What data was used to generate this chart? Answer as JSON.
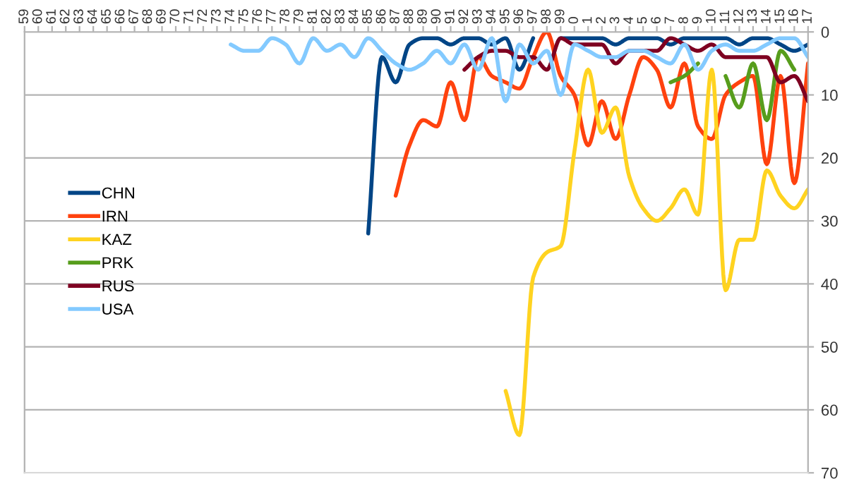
{
  "chart_data": {
    "type": "line",
    "categories": [
      "59",
      "60",
      "61",
      "62",
      "63",
      "64",
      "65",
      "66",
      "67",
      "68",
      "69",
      "70",
      "71",
      "72",
      "73",
      "74",
      "75",
      "76",
      "77",
      "78",
      "79",
      "81",
      "82",
      "83",
      "84",
      "85",
      "86",
      "87",
      "88",
      "89",
      "90",
      "91",
      "92",
      "93",
      "94",
      "95",
      "96",
      "97",
      "98",
      "99",
      "0",
      "1",
      "2",
      "3",
      "4",
      "5",
      "6",
      "7",
      "8",
      "9",
      "10",
      "11",
      "12",
      "13",
      "14",
      "15",
      "16",
      "17"
    ],
    "series": [
      {
        "name": "CHN",
        "color": "#004586",
        "values": [
          null,
          null,
          null,
          null,
          null,
          null,
          null,
          null,
          null,
          null,
          null,
          null,
          null,
          null,
          null,
          null,
          null,
          null,
          null,
          null,
          null,
          null,
          null,
          null,
          null,
          32,
          4,
          8,
          2,
          1,
          1,
          2,
          1,
          1,
          2,
          1,
          6,
          1,
          null,
          1,
          1,
          1,
          1,
          2,
          1,
          1,
          1,
          2,
          1,
          1,
          1,
          1,
          2,
          1,
          1,
          2,
          3,
          2
        ]
      },
      {
        "name": "IRN",
        "color": "#ff420e",
        "values": [
          null,
          null,
          null,
          null,
          null,
          null,
          null,
          null,
          null,
          null,
          null,
          null,
          null,
          null,
          null,
          null,
          null,
          null,
          null,
          null,
          null,
          null,
          null,
          null,
          null,
          null,
          null,
          26,
          18,
          14,
          15,
          8,
          14,
          4,
          7,
          8,
          9,
          4,
          0,
          7,
          10,
          18,
          11,
          17,
          10,
          4,
          6,
          12,
          5,
          15,
          17,
          10,
          8,
          7,
          21,
          7,
          24,
          5
        ]
      },
      {
        "name": "KAZ",
        "color": "#ffd320",
        "values": [
          null,
          null,
          null,
          null,
          null,
          null,
          null,
          null,
          null,
          null,
          null,
          null,
          null,
          null,
          null,
          null,
          null,
          null,
          null,
          null,
          null,
          null,
          null,
          null,
          null,
          null,
          null,
          null,
          null,
          null,
          null,
          null,
          null,
          null,
          null,
          57,
          64,
          39,
          35,
          34,
          19,
          6,
          16,
          12,
          23,
          28,
          30,
          28,
          25,
          29,
          6,
          41,
          33,
          33,
          22,
          26,
          28,
          25
        ]
      },
      {
        "name": "PRK",
        "color": "#579d1c",
        "values": [
          null,
          null,
          null,
          null,
          null,
          null,
          null,
          null,
          null,
          null,
          null,
          null,
          null,
          null,
          null,
          null,
          null,
          null,
          null,
          null,
          null,
          null,
          null,
          null,
          null,
          null,
          null,
          null,
          null,
          null,
          null,
          null,
          null,
          null,
          null,
          null,
          null,
          null,
          null,
          null,
          null,
          null,
          null,
          null,
          null,
          null,
          null,
          8,
          7,
          5,
          null,
          7,
          12,
          5,
          14,
          3,
          6,
          null
        ]
      },
      {
        "name": "RUS",
        "color": "#7e0021",
        "values": [
          null,
          null,
          null,
          null,
          null,
          null,
          null,
          null,
          null,
          null,
          null,
          null,
          null,
          null,
          null,
          null,
          null,
          null,
          null,
          null,
          null,
          null,
          null,
          null,
          null,
          null,
          null,
          null,
          null,
          null,
          null,
          null,
          6,
          4,
          3,
          3,
          4,
          4,
          6,
          1,
          2,
          2,
          2,
          5,
          3,
          3,
          3,
          1,
          2,
          3,
          2,
          4,
          4,
          4,
          4,
          8,
          7,
          11
        ]
      },
      {
        "name": "USA",
        "color": "#83caff",
        "values": [
          null,
          null,
          null,
          null,
          null,
          null,
          null,
          null,
          null,
          null,
          null,
          null,
          null,
          null,
          null,
          2,
          3,
          3,
          1,
          2,
          5,
          1,
          3,
          2,
          4,
          1,
          3,
          5,
          6,
          5,
          3,
          5,
          2,
          6,
          1,
          11,
          2,
          5,
          3,
          10,
          2,
          3,
          4,
          4,
          3,
          3,
          4,
          5,
          2,
          6,
          3,
          2,
          3,
          3,
          2,
          1,
          1,
          4
        ]
      }
    ],
    "ylim": [
      70,
      0
    ],
    "yticks": [
      0,
      10,
      20,
      30,
      40,
      50,
      60,
      70
    ],
    "grid": "y",
    "legend": "left",
    "marker": "none",
    "line_style": "solid"
  }
}
